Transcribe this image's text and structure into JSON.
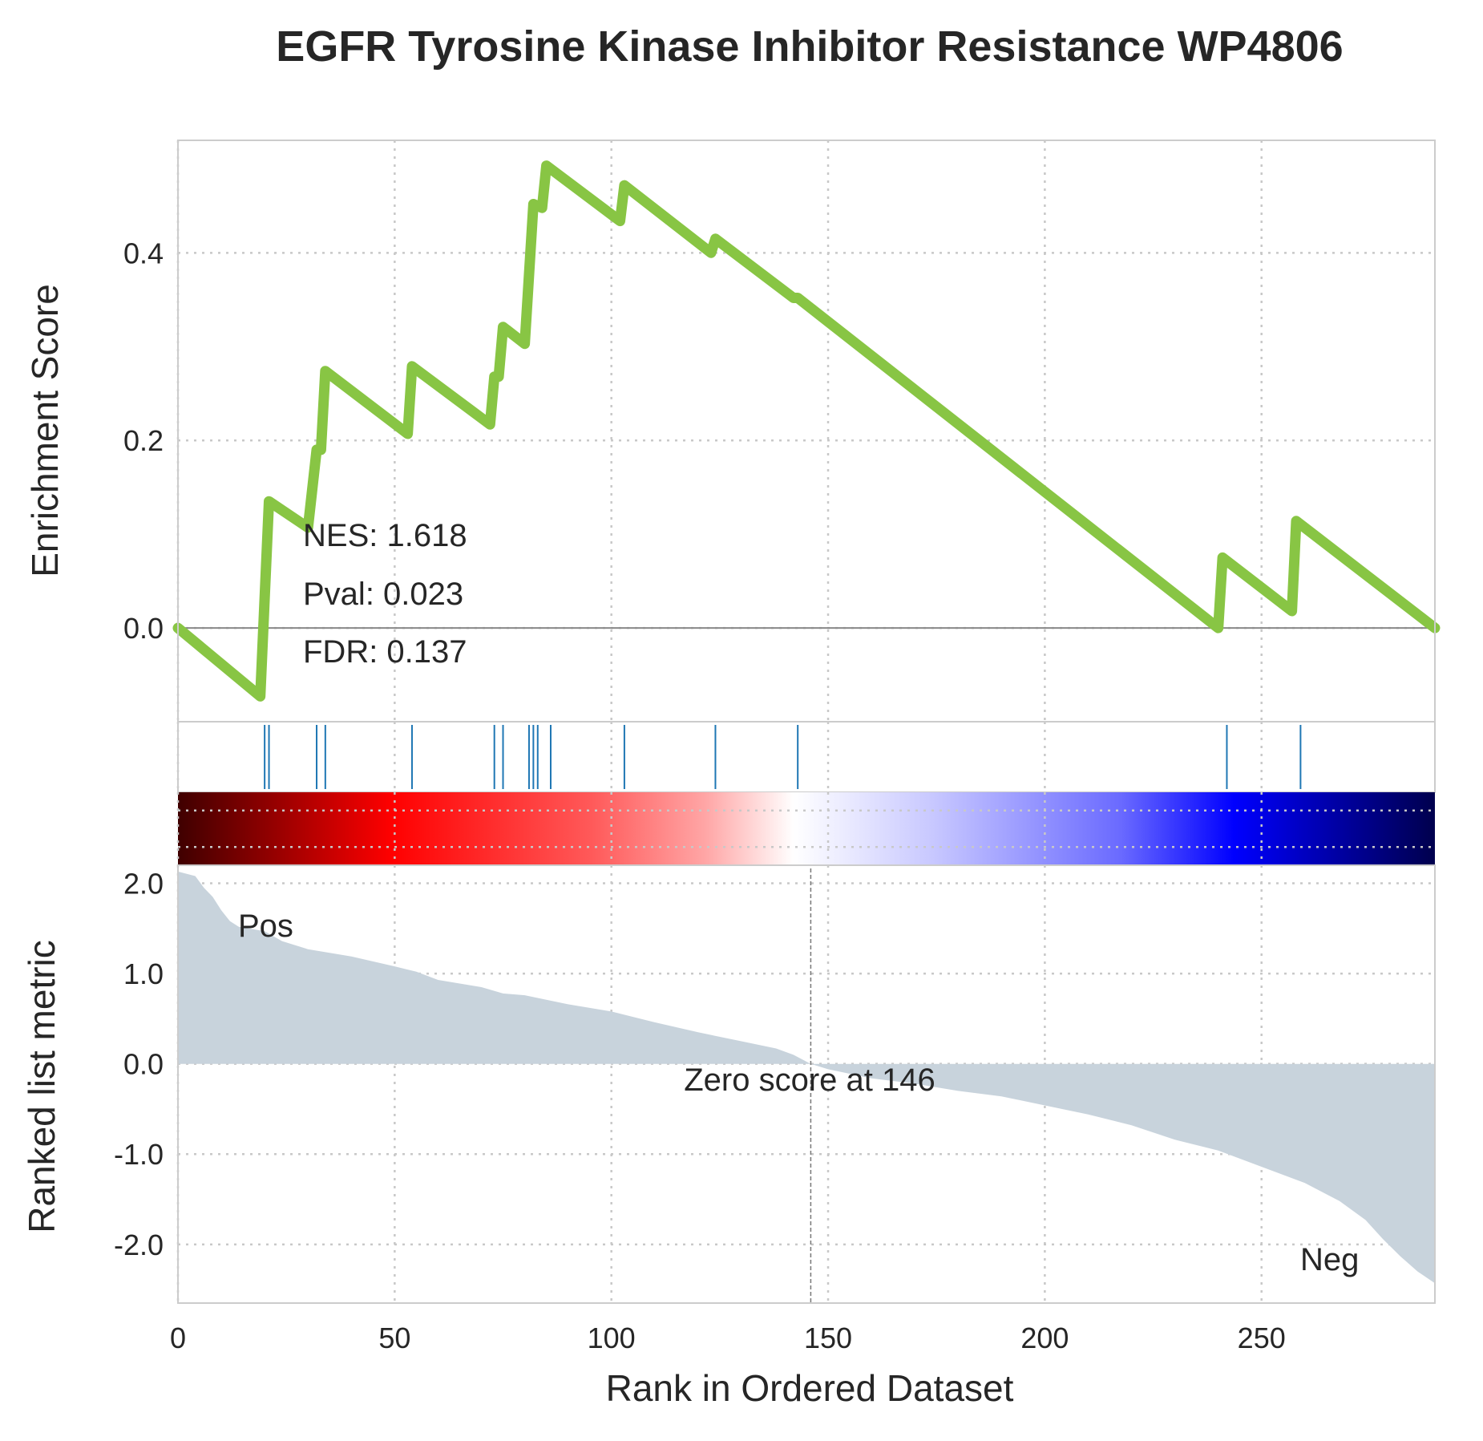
{
  "chart_data": {
    "type": "line",
    "title": "EGFR Tyrosine Kinase Inhibitor Resistance WP4806",
    "xlabel": "Rank in Ordered Dataset",
    "xlim": [
      0,
      290
    ],
    "x_ticks": [
      0,
      50,
      100,
      150,
      200,
      250
    ],
    "enrichment": {
      "ylabel": "Enrichment Score",
      "ylim": [
        -0.1,
        0.52
      ],
      "y_ticks": [
        {
          "v": 0.0,
          "label": "0.0"
        },
        {
          "v": 0.2,
          "label": "0.2"
        },
        {
          "v": 0.4,
          "label": "0.4"
        }
      ],
      "color": "#88c544",
      "points": [
        [
          0,
          0.0
        ],
        [
          19,
          -0.073
        ],
        [
          21,
          0.135
        ],
        [
          30,
          0.107
        ],
        [
          32,
          0.19
        ],
        [
          33,
          0.19
        ],
        [
          34,
          0.274
        ],
        [
          53,
          0.207
        ],
        [
          54,
          0.279
        ],
        [
          72,
          0.217
        ],
        [
          73,
          0.268
        ],
        [
          74,
          0.268
        ],
        [
          75,
          0.321
        ],
        [
          80,
          0.303
        ],
        [
          82,
          0.452
        ],
        [
          84,
          0.448
        ],
        [
          85,
          0.493
        ],
        [
          102,
          0.434
        ],
        [
          103,
          0.472
        ],
        [
          123,
          0.4
        ],
        [
          124,
          0.415
        ],
        [
          142,
          0.352
        ],
        [
          143,
          0.352
        ],
        [
          240,
          0.0
        ],
        [
          241,
          0.075
        ],
        [
          257,
          0.018
        ],
        [
          258,
          0.114
        ],
        [
          290,
          0.0
        ]
      ]
    },
    "annotations": {
      "nes": "NES: 1.618",
      "pval": "Pval: 0.023",
      "fdr": "FDR: 0.137",
      "zero_score": "Zero score at 146",
      "pos": "Pos",
      "neg": "Neg"
    },
    "hits": {
      "color": "#1f77b4",
      "positions": [
        20,
        21,
        32,
        34,
        54,
        73,
        75,
        81,
        82,
        83,
        86,
        103,
        124,
        143,
        242,
        259
      ]
    },
    "heatmap": {
      "colormap": "seismic",
      "range": [
        2.2,
        -2.5
      ]
    },
    "ranked_metric": {
      "ylabel": "Ranked list metric",
      "ylim": [
        -2.65,
        2.2
      ],
      "y_ticks": [
        {
          "v": 2.0,
          "label": "2.0"
        },
        {
          "v": 1.0,
          "label": "1.0"
        },
        {
          "v": 0.0,
          "label": "0.0"
        },
        {
          "v": -1.0,
          "label": "-1.0"
        },
        {
          "v": -2.0,
          "label": "-2.0"
        }
      ],
      "fill_color": "#c8d3dc",
      "zero_cross": 146,
      "points": [
        [
          0,
          2.13
        ],
        [
          4,
          2.08
        ],
        [
          6,
          1.95
        ],
        [
          8,
          1.85
        ],
        [
          10,
          1.7
        ],
        [
          12,
          1.58
        ],
        [
          14,
          1.52
        ],
        [
          20,
          1.47
        ],
        [
          24,
          1.36
        ],
        [
          30,
          1.27
        ],
        [
          40,
          1.19
        ],
        [
          50,
          1.08
        ],
        [
          55,
          1.02
        ],
        [
          60,
          0.93
        ],
        [
          70,
          0.85
        ],
        [
          75,
          0.78
        ],
        [
          80,
          0.76
        ],
        [
          90,
          0.66
        ],
        [
          100,
          0.58
        ],
        [
          110,
          0.46
        ],
        [
          120,
          0.35
        ],
        [
          130,
          0.25
        ],
        [
          138,
          0.17
        ],
        [
          142,
          0.1
        ],
        [
          146,
          0.0
        ],
        [
          150,
          -0.06
        ],
        [
          160,
          -0.16
        ],
        [
          170,
          -0.22
        ],
        [
          180,
          -0.3
        ],
        [
          190,
          -0.36
        ],
        [
          200,
          -0.46
        ],
        [
          210,
          -0.56
        ],
        [
          220,
          -0.68
        ],
        [
          230,
          -0.84
        ],
        [
          240,
          -0.96
        ],
        [
          250,
          -1.14
        ],
        [
          260,
          -1.32
        ],
        [
          268,
          -1.52
        ],
        [
          274,
          -1.73
        ],
        [
          278,
          -1.94
        ],
        [
          282,
          -2.13
        ],
        [
          286,
          -2.3
        ],
        [
          290,
          -2.43
        ]
      ]
    }
  }
}
